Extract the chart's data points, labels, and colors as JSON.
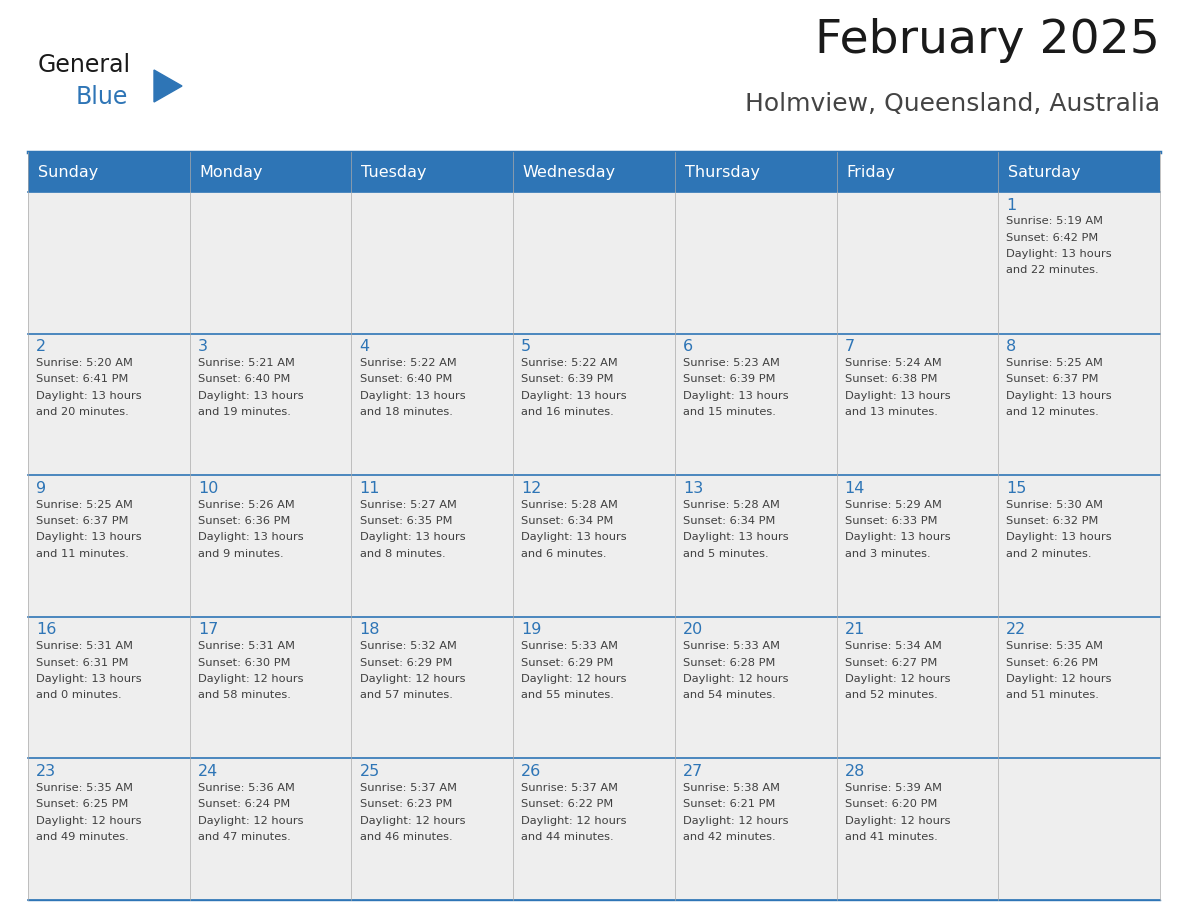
{
  "title": "February 2025",
  "subtitle": "Holmview, Queensland, Australia",
  "days_of_week": [
    "Sunday",
    "Monday",
    "Tuesday",
    "Wednesday",
    "Thursday",
    "Friday",
    "Saturday"
  ],
  "header_bg_color": "#2E75B6",
  "header_text_color": "#FFFFFF",
  "cell_bg_color": "#EEEEEE",
  "border_color": "#2E75B6",
  "day_number_color": "#2E75B6",
  "cell_text_color": "#404040",
  "title_color": "#1A1A1A",
  "subtitle_color": "#444444",
  "logo_general_color": "#1A1A1A",
  "logo_blue_color": "#2E75B6",
  "calendar_data": [
    [
      null,
      null,
      null,
      null,
      null,
      null,
      {
        "day": 1,
        "sunrise": "5:19 AM",
        "sunset": "6:42 PM",
        "daylight_hours": 13,
        "daylight_minutes": 22
      }
    ],
    [
      {
        "day": 2,
        "sunrise": "5:20 AM",
        "sunset": "6:41 PM",
        "daylight_hours": 13,
        "daylight_minutes": 20
      },
      {
        "day": 3,
        "sunrise": "5:21 AM",
        "sunset": "6:40 PM",
        "daylight_hours": 13,
        "daylight_minutes": 19
      },
      {
        "day": 4,
        "sunrise": "5:22 AM",
        "sunset": "6:40 PM",
        "daylight_hours": 13,
        "daylight_minutes": 18
      },
      {
        "day": 5,
        "sunrise": "5:22 AM",
        "sunset": "6:39 PM",
        "daylight_hours": 13,
        "daylight_minutes": 16
      },
      {
        "day": 6,
        "sunrise": "5:23 AM",
        "sunset": "6:39 PM",
        "daylight_hours": 13,
        "daylight_minutes": 15
      },
      {
        "day": 7,
        "sunrise": "5:24 AM",
        "sunset": "6:38 PM",
        "daylight_hours": 13,
        "daylight_minutes": 13
      },
      {
        "day": 8,
        "sunrise": "5:25 AM",
        "sunset": "6:37 PM",
        "daylight_hours": 13,
        "daylight_minutes": 12
      }
    ],
    [
      {
        "day": 9,
        "sunrise": "5:25 AM",
        "sunset": "6:37 PM",
        "daylight_hours": 13,
        "daylight_minutes": 11
      },
      {
        "day": 10,
        "sunrise": "5:26 AM",
        "sunset": "6:36 PM",
        "daylight_hours": 13,
        "daylight_minutes": 9
      },
      {
        "day": 11,
        "sunrise": "5:27 AM",
        "sunset": "6:35 PM",
        "daylight_hours": 13,
        "daylight_minutes": 8
      },
      {
        "day": 12,
        "sunrise": "5:28 AM",
        "sunset": "6:34 PM",
        "daylight_hours": 13,
        "daylight_minutes": 6
      },
      {
        "day": 13,
        "sunrise": "5:28 AM",
        "sunset": "6:34 PM",
        "daylight_hours": 13,
        "daylight_minutes": 5
      },
      {
        "day": 14,
        "sunrise": "5:29 AM",
        "sunset": "6:33 PM",
        "daylight_hours": 13,
        "daylight_minutes": 3
      },
      {
        "day": 15,
        "sunrise": "5:30 AM",
        "sunset": "6:32 PM",
        "daylight_hours": 13,
        "daylight_minutes": 2
      }
    ],
    [
      {
        "day": 16,
        "sunrise": "5:31 AM",
        "sunset": "6:31 PM",
        "daylight_hours": 13,
        "daylight_minutes": 0
      },
      {
        "day": 17,
        "sunrise": "5:31 AM",
        "sunset": "6:30 PM",
        "daylight_hours": 12,
        "daylight_minutes": 58
      },
      {
        "day": 18,
        "sunrise": "5:32 AM",
        "sunset": "6:29 PM",
        "daylight_hours": 12,
        "daylight_minutes": 57
      },
      {
        "day": 19,
        "sunrise": "5:33 AM",
        "sunset": "6:29 PM",
        "daylight_hours": 12,
        "daylight_minutes": 55
      },
      {
        "day": 20,
        "sunrise": "5:33 AM",
        "sunset": "6:28 PM",
        "daylight_hours": 12,
        "daylight_minutes": 54
      },
      {
        "day": 21,
        "sunrise": "5:34 AM",
        "sunset": "6:27 PM",
        "daylight_hours": 12,
        "daylight_minutes": 52
      },
      {
        "day": 22,
        "sunrise": "5:35 AM",
        "sunset": "6:26 PM",
        "daylight_hours": 12,
        "daylight_minutes": 51
      }
    ],
    [
      {
        "day": 23,
        "sunrise": "5:35 AM",
        "sunset": "6:25 PM",
        "daylight_hours": 12,
        "daylight_minutes": 49
      },
      {
        "day": 24,
        "sunrise": "5:36 AM",
        "sunset": "6:24 PM",
        "daylight_hours": 12,
        "daylight_minutes": 47
      },
      {
        "day": 25,
        "sunrise": "5:37 AM",
        "sunset": "6:23 PM",
        "daylight_hours": 12,
        "daylight_minutes": 46
      },
      {
        "day": 26,
        "sunrise": "5:37 AM",
        "sunset": "6:22 PM",
        "daylight_hours": 12,
        "daylight_minutes": 44
      },
      {
        "day": 27,
        "sunrise": "5:38 AM",
        "sunset": "6:21 PM",
        "daylight_hours": 12,
        "daylight_minutes": 42
      },
      {
        "day": 28,
        "sunrise": "5:39 AM",
        "sunset": "6:20 PM",
        "daylight_hours": 12,
        "daylight_minutes": 41
      },
      null
    ]
  ],
  "num_rows": 5,
  "num_cols": 7
}
